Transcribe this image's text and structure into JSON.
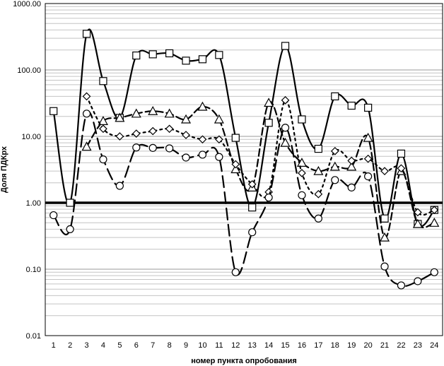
{
  "chart_data": {
    "type": "line",
    "title": "",
    "xlabel": "номер пункта опробования",
    "ylabel": "Доля ПДКрх",
    "yscale": "log",
    "ylim": [
      0.01,
      1000
    ],
    "ytick_labels": [
      "0.01",
      "0.10",
      "1.00",
      "10.00",
      "100.00",
      "1000.00"
    ],
    "x": [
      1,
      2,
      3,
      4,
      5,
      6,
      7,
      8,
      9,
      10,
      11,
      12,
      13,
      14,
      15,
      16,
      17,
      18,
      19,
      20,
      21,
      22,
      23,
      24
    ],
    "grid": true,
    "reference_line": 1.0,
    "series": [
      {
        "marker": "square",
        "line": "solid",
        "values": [
          24,
          1.0,
          350,
          68,
          19,
          165,
          172,
          178,
          138,
          145,
          168,
          9.5,
          0.85,
          16,
          230,
          18,
          6.5,
          40,
          29,
          27,
          0.58,
          5.5,
          0.48,
          0.78
        ]
      },
      {
        "marker": "triangle",
        "line": "dash",
        "values": [
          null,
          null,
          7.0,
          17,
          19,
          22,
          24,
          22,
          18,
          28,
          18,
          3.2,
          1.7,
          32,
          8,
          4,
          3,
          3.5,
          3.5,
          9.5,
          0.3,
          3,
          0.48,
          0.5
        ]
      },
      {
        "marker": "diamond",
        "line": "dot",
        "values": [
          null,
          null,
          40,
          13,
          10,
          11,
          12,
          13,
          10.5,
          9,
          9,
          3.8,
          1.9,
          1.45,
          35,
          2.8,
          1.35,
          6,
          4.3,
          4.6,
          3,
          3.3,
          0.72,
          0.78
        ]
      },
      {
        "marker": "circle",
        "line": "longdash",
        "values": [
          0.65,
          0.4,
          22,
          4.5,
          1.8,
          6.8,
          6.7,
          6.6,
          4.8,
          5.3,
          4.9,
          0.09,
          0.36,
          1.2,
          13.5,
          1.3,
          0.58,
          2.2,
          1.7,
          2.5,
          0.11,
          0.057,
          0.066,
          0.09
        ]
      }
    ]
  }
}
